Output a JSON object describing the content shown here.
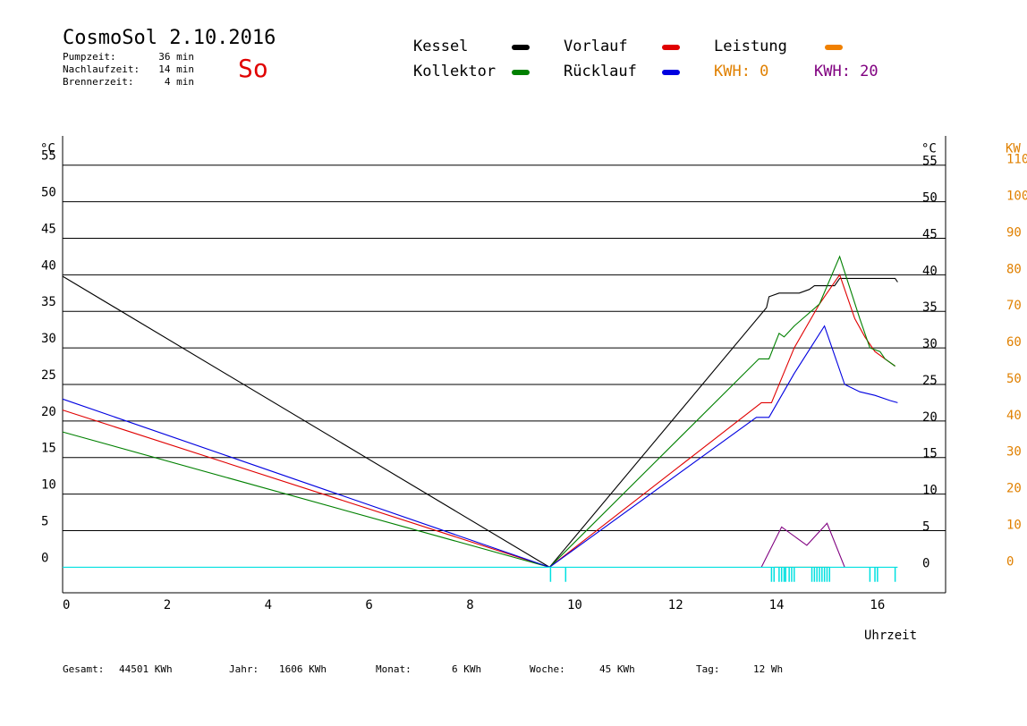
{
  "header": {
    "title": "CosmoSol 2.10.2016",
    "day": "So",
    "info": [
      {
        "label": "Pumpzeit:",
        "value": "36 min"
      },
      {
        "label": "Nachlaufzeit:",
        "value": "14 min"
      },
      {
        "label": "Brennerzeit:",
        "value": "4 min"
      }
    ]
  },
  "legend": [
    {
      "label": "Kessel",
      "color": "#000000",
      "swatch": true
    },
    {
      "label": "Vorlauf",
      "color": "#e00000",
      "swatch": true
    },
    {
      "label": "Leistung",
      "color": "#f08000",
      "swatch": true
    },
    {
      "label": "Kollektor",
      "color": "#008000",
      "swatch": true
    },
    {
      "label": "Rücklauf",
      "color": "#0000e0",
      "swatch": true
    },
    {
      "label": "KWH: 0",
      "color": "#e08000",
      "swatch": false
    },
    {
      "label": "KWH: 20",
      "color": "#800080",
      "swatch": false
    }
  ],
  "footer": {
    "gesamt_label": "Gesamt:",
    "gesamt_value": "44501 KWh",
    "jahr_label": "Jahr:",
    "jahr_value": "1606 KWh",
    "monat_label": "Monat:",
    "monat_value": "6 KWh",
    "woche_label": "Woche:",
    "woche_value": "45 KWh",
    "tag_label": "Tag:",
    "tag_value": "12 Wh"
  },
  "chart_data": {
    "type": "line",
    "xlabel": "Uhrzeit",
    "ylabel_left": "°C",
    "ylabel_right": "°C",
    "ylabel_kw": "KW",
    "xlim": [
      0,
      17.5
    ],
    "ylim": [
      -3.5,
      59
    ],
    "x_ticks": [
      0,
      2,
      4,
      6,
      8,
      10,
      12,
      14,
      16
    ],
    "y_ticks": [
      0,
      5,
      10,
      15,
      20,
      25,
      30,
      35,
      40,
      45,
      50,
      55
    ],
    "kw_ticks": [
      0,
      10,
      20,
      30,
      40,
      50,
      60,
      70,
      80,
      90,
      100,
      110
    ],
    "kw_tick_labels": [
      "0",
      "10",
      "20",
      "30",
      "40",
      "50",
      "60",
      "70",
      "80",
      "90",
      "100",
      "110"
    ],
    "grid": true,
    "series": [
      {
        "name": "Kessel",
        "color": "#000000",
        "x": [
          0,
          9.65,
          13.95,
          14.0,
          14.2,
          14.6,
          14.8,
          14.9,
          15.3,
          15.4,
          16.5,
          16.55
        ],
        "y": [
          39.8,
          0,
          35.5,
          37,
          37.5,
          37.5,
          38,
          38.5,
          38.5,
          39.5,
          39.5,
          39
        ]
      },
      {
        "name": "Vorlauf",
        "color": "#e00000",
        "x": [
          0,
          9.65,
          13.85,
          14.05,
          14.5,
          15.0,
          15.4,
          15.7,
          15.9,
          16.1,
          16.3,
          16.5
        ],
        "y": [
          21.5,
          0,
          22.5,
          22.5,
          30,
          36,
          40,
          34,
          31.5,
          29.5,
          28.5,
          27.5
        ]
      },
      {
        "name": "Kollektor",
        "color": "#008000",
        "x": [
          0,
          9.65,
          13.8,
          14.0,
          14.2,
          14.3,
          14.5,
          15.0,
          15.4,
          15.8,
          16.0,
          16.2,
          16.3,
          16.5
        ],
        "y": [
          18.5,
          0,
          28.5,
          28.5,
          32,
          31.5,
          33,
          36,
          42.5,
          34,
          30,
          29.5,
          28.5,
          27.5
        ]
      },
      {
        "name": "Rücklauf",
        "color": "#0000e0",
        "x": [
          0,
          9.65,
          13.75,
          13.8,
          14.0,
          14.5,
          15.1,
          15.5,
          15.8,
          16.1,
          16.4,
          16.55
        ],
        "y": [
          23,
          0,
          20.5,
          20.5,
          20.5,
          26.5,
          33,
          25,
          24,
          23.5,
          22.8,
          22.5
        ]
      },
      {
        "name": "KWH: 20",
        "color": "#800080",
        "x": [
          13.85,
          14.25,
          14.75,
          15.15,
          15.5
        ],
        "y": [
          0,
          5.5,
          3,
          6,
          0
        ]
      },
      {
        "name": "Leistung",
        "color": "#f08000",
        "x": [
          14.1,
          14.5,
          15.2
        ],
        "y": [
          0,
          0,
          0
        ]
      },
      {
        "name": "",
        "color": "#00e0e0",
        "x": [
          0,
          16.55
        ],
        "y": [
          0,
          0
        ]
      }
    ],
    "cyan_spikes": [
      9.67,
      9.97,
      14.05,
      14.1,
      14.2,
      14.25,
      14.3,
      14.33,
      14.4,
      14.45,
      14.5,
      14.85,
      14.9,
      14.95,
      15.0,
      15.05,
      15.1,
      15.15,
      15.2,
      16.0,
      16.1,
      16.15,
      16.5
    ]
  }
}
